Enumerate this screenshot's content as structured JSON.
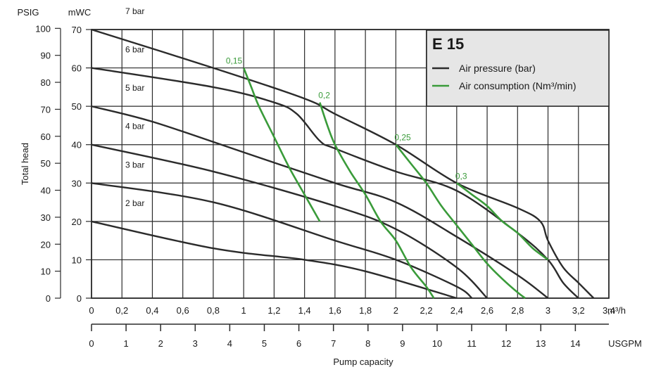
{
  "chart_data": {
    "type": "line",
    "title": "E 15",
    "xlabel": "Pump capacity",
    "ylabel": "Total head",
    "x_unit_top": "m³/h",
    "x_unit_bottom": "USGPM",
    "y_unit_left": "PSIG",
    "y_unit_right": "mWC",
    "xlim": [
      0,
      3.4
    ],
    "ylim": [
      0,
      70
    ],
    "grid": true,
    "legend_position": "top-right",
    "x_ticks_m3h": [
      "0",
      "0,2",
      "0,4",
      "0,6",
      "0,8",
      "1",
      "1,2",
      "1,4",
      "1,6",
      "1,8",
      "2",
      "2,2",
      "2,4",
      "2,6",
      "2,8",
      "3",
      "3,2",
      "3,4"
    ],
    "x_ticks_usgpm": [
      "0",
      "1",
      "2",
      "3",
      "4",
      "5",
      "6",
      "7",
      "8",
      "9",
      "10",
      "11",
      "12",
      "13",
      "14"
    ],
    "y_ticks_mwc": [
      "0",
      "10",
      "20",
      "30",
      "40",
      "50",
      "60",
      "70"
    ],
    "y_ticks_psig": [
      "0",
      "10",
      "20",
      "30",
      "40",
      "50",
      "60",
      "70",
      "80",
      "90",
      "100"
    ],
    "legend": [
      {
        "label": "Air pressure (bar)",
        "color": "#2b2b2b"
      },
      {
        "label": "Air consumption (Nm³/min)",
        "color": "#3a9b3a"
      }
    ],
    "pressure_series": [
      {
        "label": "7 bar",
        "points": [
          [
            0,
            70
          ],
          [
            0.8,
            60
          ],
          [
            1.4,
            52
          ],
          [
            1.6,
            48
          ],
          [
            2.0,
            40
          ],
          [
            2.4,
            30
          ],
          [
            2.8,
            23.5
          ],
          [
            2.95,
            20
          ],
          [
            3.0,
            15
          ],
          [
            3.1,
            8
          ],
          [
            3.2,
            4
          ],
          [
            3.3,
            0
          ]
        ]
      },
      {
        "label": "6 bar",
        "points": [
          [
            0,
            60
          ],
          [
            0.8,
            55
          ],
          [
            1.2,
            51
          ],
          [
            1.35,
            48
          ],
          [
            1.5,
            41
          ],
          [
            1.6,
            39
          ],
          [
            2.0,
            33
          ],
          [
            2.4,
            28
          ],
          [
            2.8,
            17
          ],
          [
            3.0,
            10
          ],
          [
            3.1,
            4
          ],
          [
            3.2,
            0
          ]
        ]
      },
      {
        "label": "5 bar",
        "points": [
          [
            0,
            50
          ],
          [
            0.4,
            46
          ],
          [
            1.0,
            38
          ],
          [
            1.6,
            30
          ],
          [
            2.0,
            25
          ],
          [
            2.4,
            16
          ],
          [
            2.8,
            6
          ],
          [
            3.0,
            0
          ]
        ]
      },
      {
        "label": "4 bar",
        "points": [
          [
            0,
            40
          ],
          [
            0.8,
            33
          ],
          [
            1.6,
            24
          ],
          [
            2.0,
            18
          ],
          [
            2.4,
            8
          ],
          [
            2.6,
            0
          ]
        ]
      },
      {
        "label": "3 bar",
        "points": [
          [
            0,
            30
          ],
          [
            0.8,
            25
          ],
          [
            1.6,
            15
          ],
          [
            2.0,
            10
          ],
          [
            2.4,
            3
          ],
          [
            2.5,
            0
          ]
        ]
      },
      {
        "label": "2 bar",
        "points": [
          [
            0,
            20
          ],
          [
            0.8,
            13
          ],
          [
            1.4,
            10
          ],
          [
            1.8,
            7
          ],
          [
            2.4,
            0
          ]
        ]
      }
    ],
    "consumption_series": [
      {
        "label": "0,15",
        "points": [
          [
            1.0,
            60
          ],
          [
            1.05,
            55
          ],
          [
            1.1,
            50
          ],
          [
            1.2,
            42
          ],
          [
            1.3,
            34
          ],
          [
            1.4,
            27
          ],
          [
            1.5,
            20
          ]
        ]
      },
      {
        "label": "0,2",
        "points": [
          [
            1.5,
            51
          ],
          [
            1.55,
            45
          ],
          [
            1.6,
            40
          ],
          [
            1.7,
            33
          ],
          [
            1.8,
            27
          ],
          [
            1.9,
            20
          ],
          [
            2.0,
            15
          ],
          [
            2.1,
            8
          ],
          [
            2.2,
            3
          ],
          [
            2.25,
            0
          ]
        ]
      },
      {
        "label": "0,25",
        "points": [
          [
            2.0,
            40
          ],
          [
            2.1,
            35
          ],
          [
            2.2,
            30
          ],
          [
            2.3,
            24
          ],
          [
            2.4,
            19
          ],
          [
            2.5,
            14
          ],
          [
            2.6,
            9
          ],
          [
            2.7,
            5
          ],
          [
            2.8,
            1.5
          ],
          [
            2.85,
            0
          ]
        ]
      },
      {
        "label": "0,3",
        "points": [
          [
            2.4,
            30
          ],
          [
            2.5,
            27
          ],
          [
            2.6,
            24
          ],
          [
            2.7,
            20
          ],
          [
            2.8,
            17
          ],
          [
            2.9,
            13
          ],
          [
            3.0,
            10
          ]
        ]
      }
    ]
  }
}
